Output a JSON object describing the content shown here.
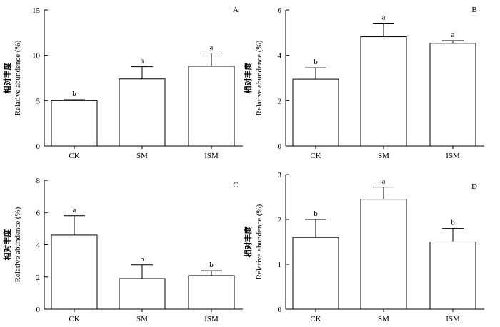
{
  "chart_data": [
    {
      "type": "bar",
      "panel": "A",
      "categories": [
        "CK",
        "SM",
        "ISM"
      ],
      "values": [
        5.0,
        7.4,
        8.8
      ],
      "errors": [
        0.1,
        1.35,
        1.45
      ],
      "significance": [
        "b",
        "a",
        "a"
      ],
      "ylabel_zh": "相对丰度",
      "ylabel": "Relative abundence (%)",
      "ylim": [
        0,
        15
      ],
      "yticks": [
        0,
        5,
        10,
        15
      ]
    },
    {
      "type": "bar",
      "panel": "B",
      "categories": [
        "CK",
        "SM",
        "ISM"
      ],
      "values": [
        2.95,
        4.82,
        4.53
      ],
      "errors": [
        0.5,
        0.6,
        0.12
      ],
      "significance": [
        "b",
        "a",
        "a"
      ],
      "ylabel_zh": "相对丰度",
      "ylabel": "Relative abundence (%)",
      "ylim": [
        0,
        6
      ],
      "yticks": [
        0,
        2,
        4,
        6
      ]
    },
    {
      "type": "bar",
      "panel": "C",
      "categories": [
        "CK",
        "SM",
        "ISM"
      ],
      "values": [
        4.6,
        1.9,
        2.08
      ],
      "errors": [
        1.2,
        0.85,
        0.3
      ],
      "significance": [
        "a",
        "b",
        "b"
      ],
      "ylabel_zh": "相对丰度",
      "ylabel": "Relative abundence (%)",
      "ylim": [
        0,
        8
      ],
      "yticks": [
        0,
        2,
        4,
        6,
        8
      ]
    },
    {
      "type": "bar",
      "panel": "D",
      "categories": [
        "CK",
        "SM",
        "ISM"
      ],
      "values": [
        1.6,
        2.45,
        1.5
      ],
      "errors": [
        0.4,
        0.27,
        0.3
      ],
      "significance": [
        "b",
        "a",
        "b"
      ],
      "ylabel_zh": "相对丰度",
      "ylabel": "Relative abundence (%)",
      "ylim": [
        0,
        3
      ],
      "yticks": [
        0,
        1,
        2,
        3
      ]
    }
  ]
}
